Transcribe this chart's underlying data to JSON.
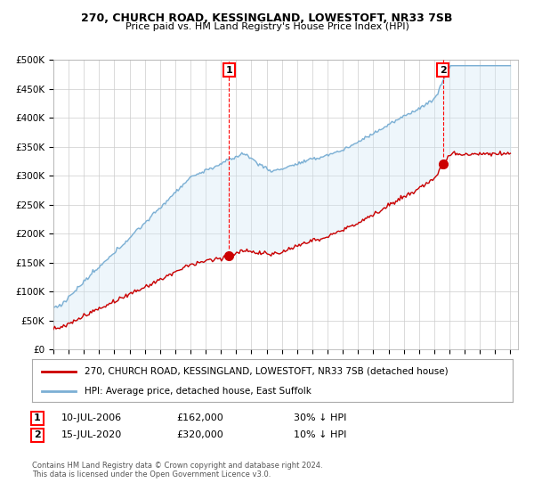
{
  "title1": "270, CHURCH ROAD, KESSINGLAND, LOWESTOFT, NR33 7SB",
  "title2": "Price paid vs. HM Land Registry's House Price Index (HPI)",
  "ylim": [
    0,
    500000
  ],
  "yticks": [
    0,
    50000,
    100000,
    150000,
    200000,
    250000,
    300000,
    350000,
    400000,
    450000,
    500000
  ],
  "ytick_labels": [
    "£0",
    "£50K",
    "£100K",
    "£150K",
    "£200K",
    "£250K",
    "£300K",
    "£350K",
    "£400K",
    "£450K",
    "£500K"
  ],
  "hpi_color": "#7bafd4",
  "hpi_fill_color": "#d0e8f5",
  "price_color": "#cc0000",
  "sale1_year": 2006.53,
  "sale1_price": 162000,
  "sale2_year": 2020.54,
  "sale2_price": 320000,
  "legend_property": "270, CHURCH ROAD, KESSINGLAND, LOWESTOFT, NR33 7SB (detached house)",
  "legend_hpi": "HPI: Average price, detached house, East Suffolk",
  "ann1_date": "10-JUL-2006",
  "ann1_price": "£162,000",
  "ann1_hpi": "30% ↓ HPI",
  "ann2_date": "15-JUL-2020",
  "ann2_price": "£320,000",
  "ann2_hpi": "10% ↓ HPI",
  "footer": "Contains HM Land Registry data © Crown copyright and database right 2024.\nThis data is licensed under the Open Government Licence v3.0.",
  "background_color": "#ffffff",
  "grid_color": "#cccccc",
  "title_fontsize": 9,
  "subtitle_fontsize": 8
}
